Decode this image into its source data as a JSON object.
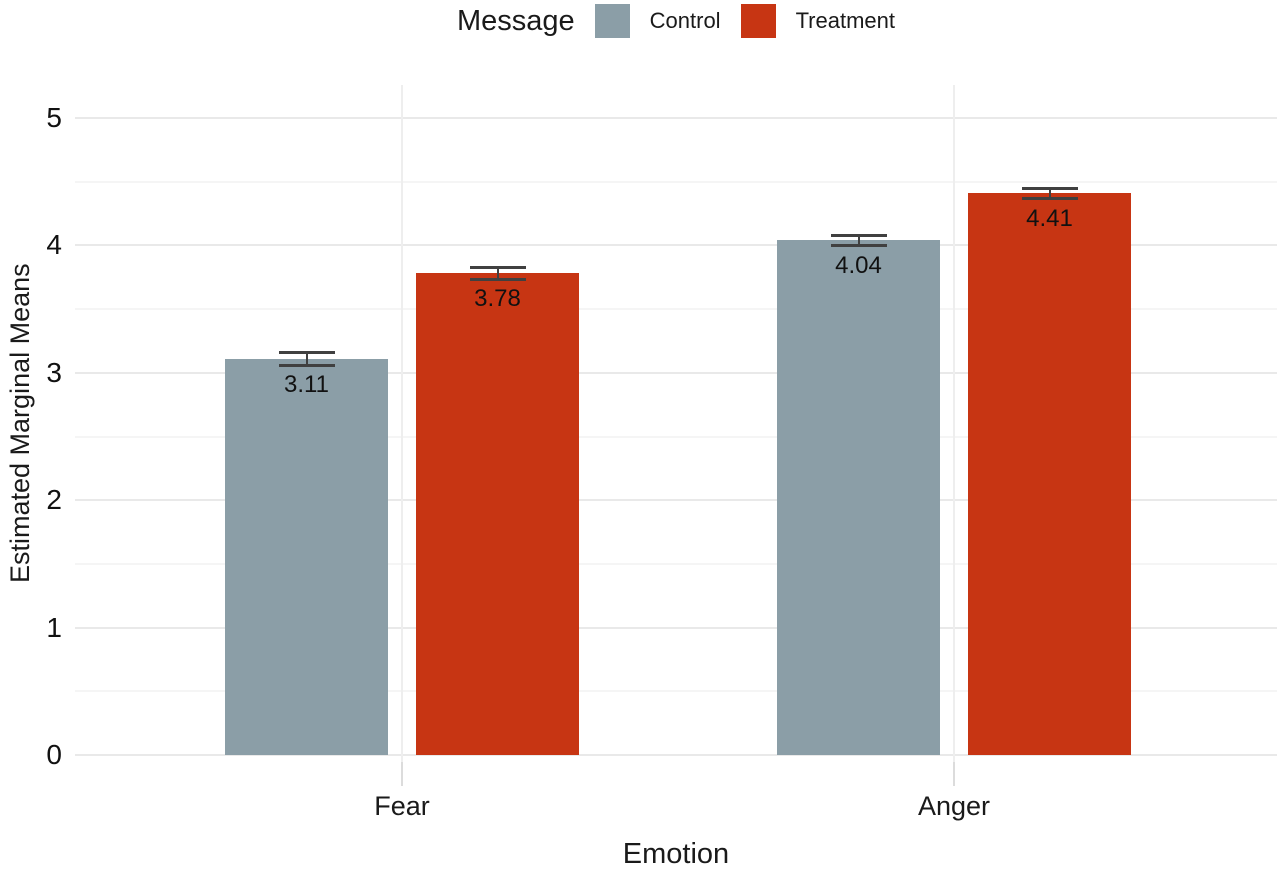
{
  "chart_data": {
    "type": "bar",
    "title": "",
    "legend": {
      "title": "Message",
      "position": "top"
    },
    "categories": [
      "Fear",
      "Anger"
    ],
    "series": [
      {
        "name": "Control",
        "color": "#8B9EA7",
        "values": [
          3.11,
          4.04
        ],
        "value_labels": [
          "3.11",
          "4.04"
        ],
        "errors": [
          0.05,
          0.04
        ]
      },
      {
        "name": "Treatment",
        "color": "#C73513",
        "values": [
          3.78,
          4.41
        ],
        "value_labels": [
          "3.78",
          "4.41"
        ],
        "errors": [
          0.05,
          0.04
        ]
      }
    ],
    "xlabel": "Emotion",
    "ylabel": "Estimated Marginal Means",
    "ylim": [
      0,
      5.26
    ],
    "yticks": [
      0,
      1,
      2,
      3,
      4,
      5
    ],
    "minor_gridlines_at": [
      0.5,
      1.5,
      2.5,
      3.5,
      4.5
    ],
    "grid": "horizontal major+minor gridlines, vertical gridline at each category center",
    "error_bar_color": "#404040",
    "text_color": "#1a1a1a",
    "background_color": "#ffffff"
  }
}
